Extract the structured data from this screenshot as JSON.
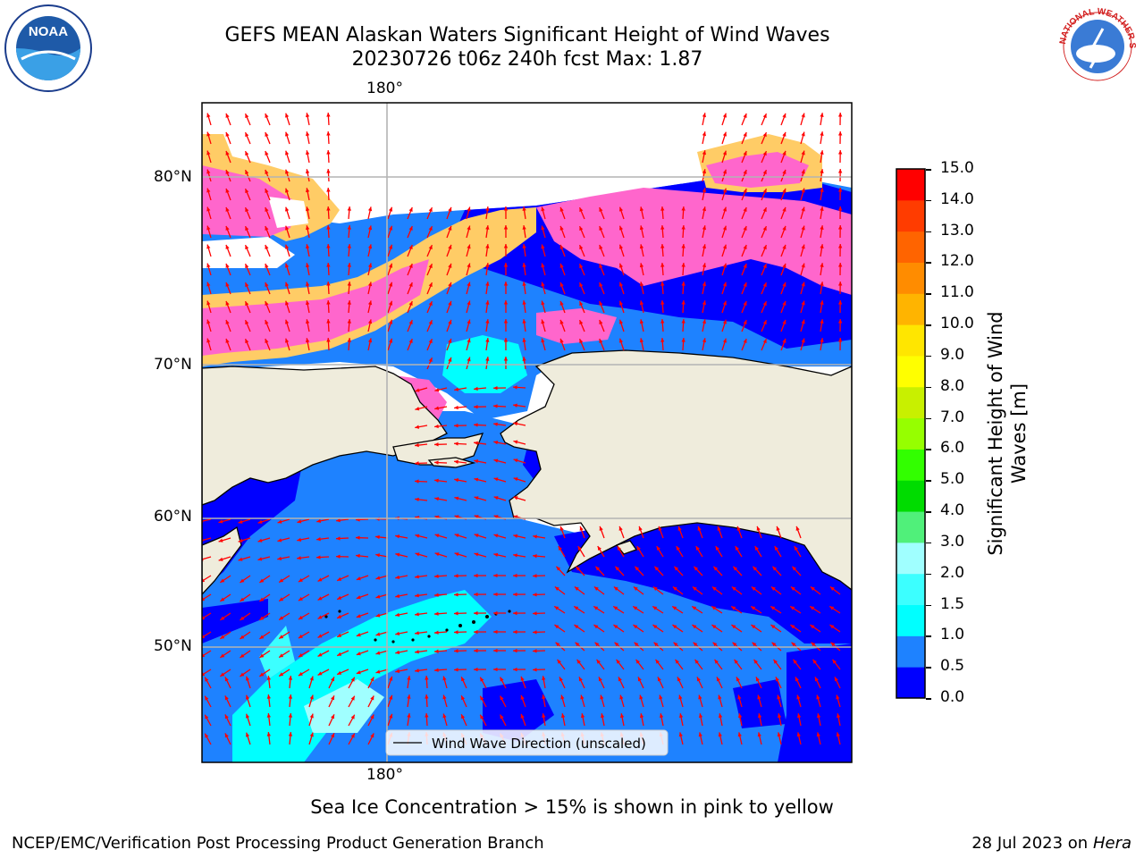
{
  "title_line1": "GEFS MEAN Alaskan Waters Significant Height of Wind Waves",
  "title_line2": "20230726 t06z 240h fcst   Max: 1.87",
  "logos": {
    "noaa": "NOAA",
    "nws": "NATIONAL WEATHER SERVICE"
  },
  "map": {
    "top_lon_label": "180°",
    "bottom_lon_label": "180°",
    "lat_labels": [
      "80°N",
      "70°N",
      "60°N",
      "50°N"
    ],
    "legend_text": "Wind Wave Direction (unscaled)",
    "colors": {
      "land": "#efecdc",
      "ocean_low": "#0000ff",
      "ocean_mid": "#1e82ff",
      "ocean_high": "#00ffff",
      "ice_pink": "#ff66cc",
      "ice_yellow": "#ffcc66",
      "arrow": "#ff0000"
    }
  },
  "colorbar": {
    "label": "Significant Height of Wind Waves [m]",
    "ticks": [
      "15.0",
      "14.0",
      "13.0",
      "12.0",
      "11.0",
      "10.0",
      "9.0",
      "8.0",
      "7.0",
      "6.0",
      "5.0",
      "4.0",
      "3.0",
      "2.0",
      "1.5",
      "1.0",
      "0.5",
      "0.0"
    ],
    "colors_bottom_to_top": [
      "#0000ff",
      "#1e82ff",
      "#00ffff",
      "#3cffff",
      "#a0ffff",
      "#50f07a",
      "#00dc00",
      "#32ff00",
      "#96ff00",
      "#c8f000",
      "#ffff00",
      "#ffe600",
      "#ffb400",
      "#ff8c00",
      "#ff6400",
      "#ff3c00",
      "#ff0000"
    ]
  },
  "caption": "Sea Ice Concentration > 15% is shown in pink to yellow",
  "footer_left": "NCEP/EMC/Verification Post Processing Product Generation Branch",
  "footer_date": "28 Jul 2023 on ",
  "footer_machine": "Hera"
}
